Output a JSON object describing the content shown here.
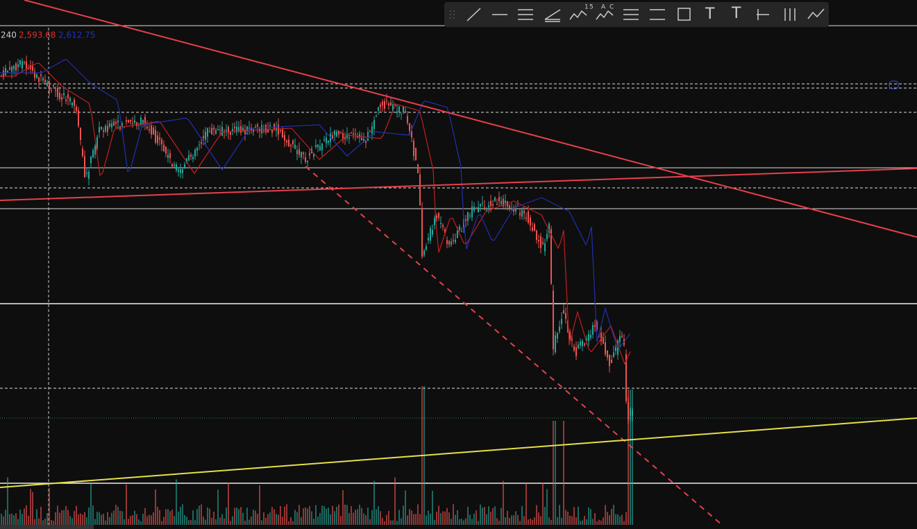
{
  "legend": {
    "interval": "240",
    "ma_fast": "2,593.68",
    "ma_slow": "2,612.75"
  },
  "toolbar": {
    "fib_labels": [
      "1",
      "5"
    ],
    "pattern_labels": [
      "A",
      "C"
    ],
    "text_tool": "T",
    "anchored_text_tool": "T"
  }
}
